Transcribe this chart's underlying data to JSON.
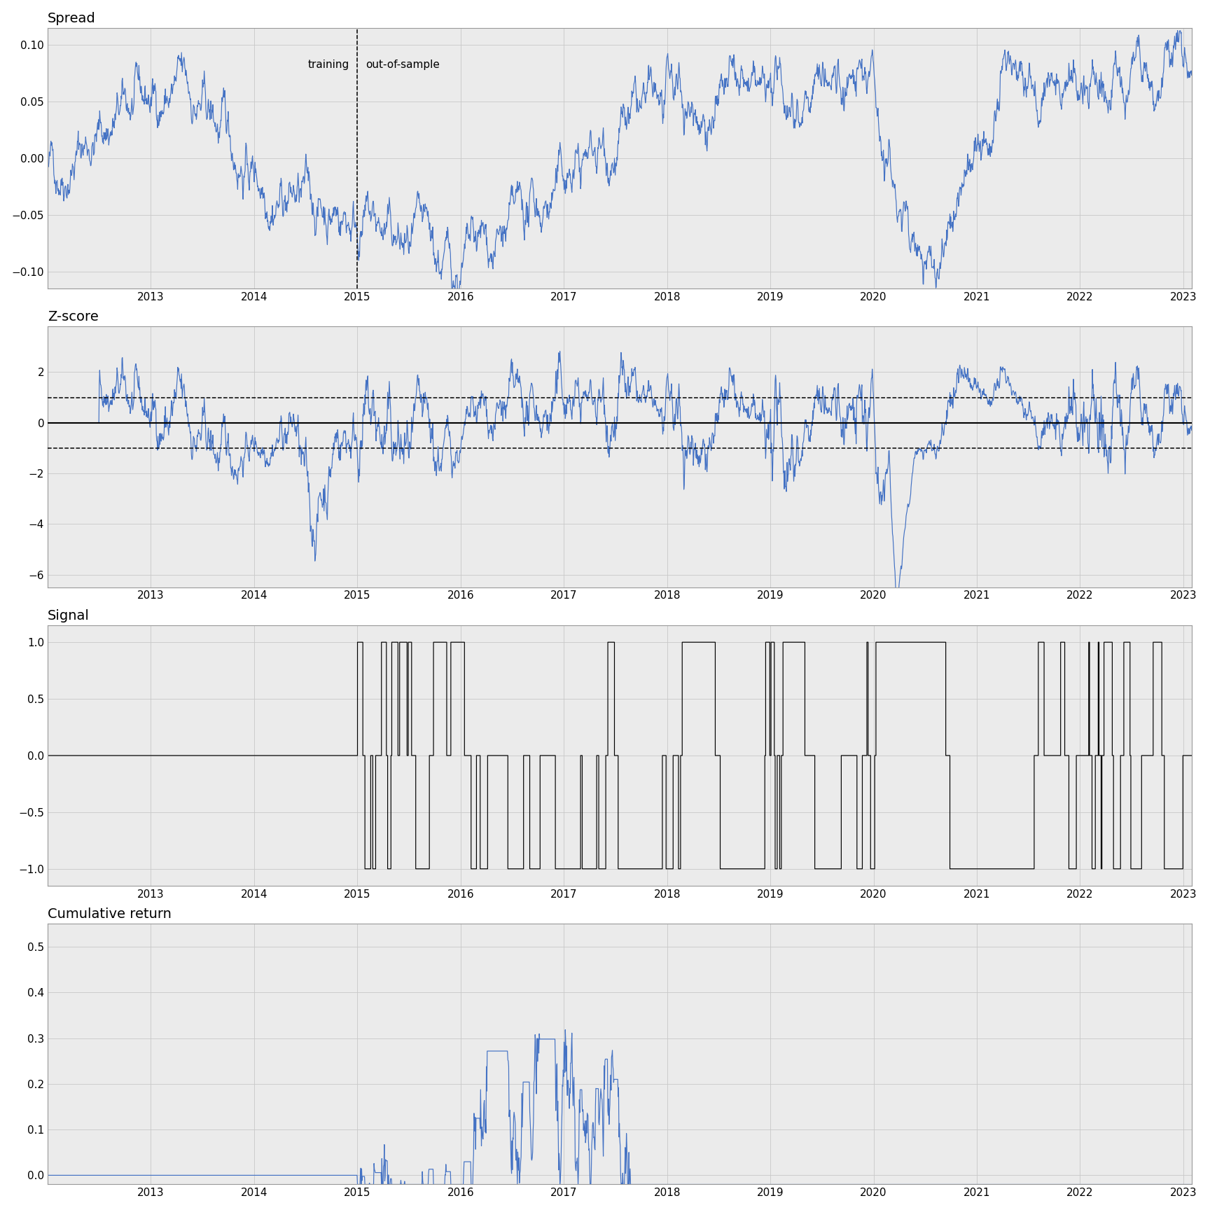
{
  "n_days": 2770,
  "date_start": 2012.0,
  "date_end": 2023.08,
  "train_cutoff_date": 2015.0,
  "fig_width": 17.28,
  "fig_height": 17.28,
  "spread_ylim": [
    -0.115,
    0.115
  ],
  "spread_yticks": [
    -0.1,
    -0.05,
    0.0,
    0.05,
    0.1
  ],
  "zscore_ylim": [
    -6.5,
    3.8
  ],
  "zscore_yticks": [
    -6,
    -4,
    -2,
    0,
    2
  ],
  "signal_ylim": [
    -1.15,
    1.15
  ],
  "signal_yticks": [
    -1.0,
    -0.5,
    0.0,
    0.5,
    1.0
  ],
  "cumret_ylim": [
    -0.02,
    0.55
  ],
  "cumret_yticks": [
    0.0,
    0.1,
    0.2,
    0.3,
    0.4,
    0.5
  ],
  "xticks": [
    2013,
    2014,
    2015,
    2016,
    2017,
    2018,
    2019,
    2020,
    2021,
    2022,
    2023
  ],
  "line_color_blue": "#4472C4",
  "line_color_black": "#000000",
  "bg_color": "#FFFFFF",
  "grid_color": "#C8C8C8",
  "panel_bg": "#EBEBEB",
  "title_fontsize": 14,
  "tick_fontsize": 11,
  "training_label": "training",
  "oos_label": "out-of-sample",
  "zscore_entry": 1.0,
  "zscore_exit": 0.0
}
